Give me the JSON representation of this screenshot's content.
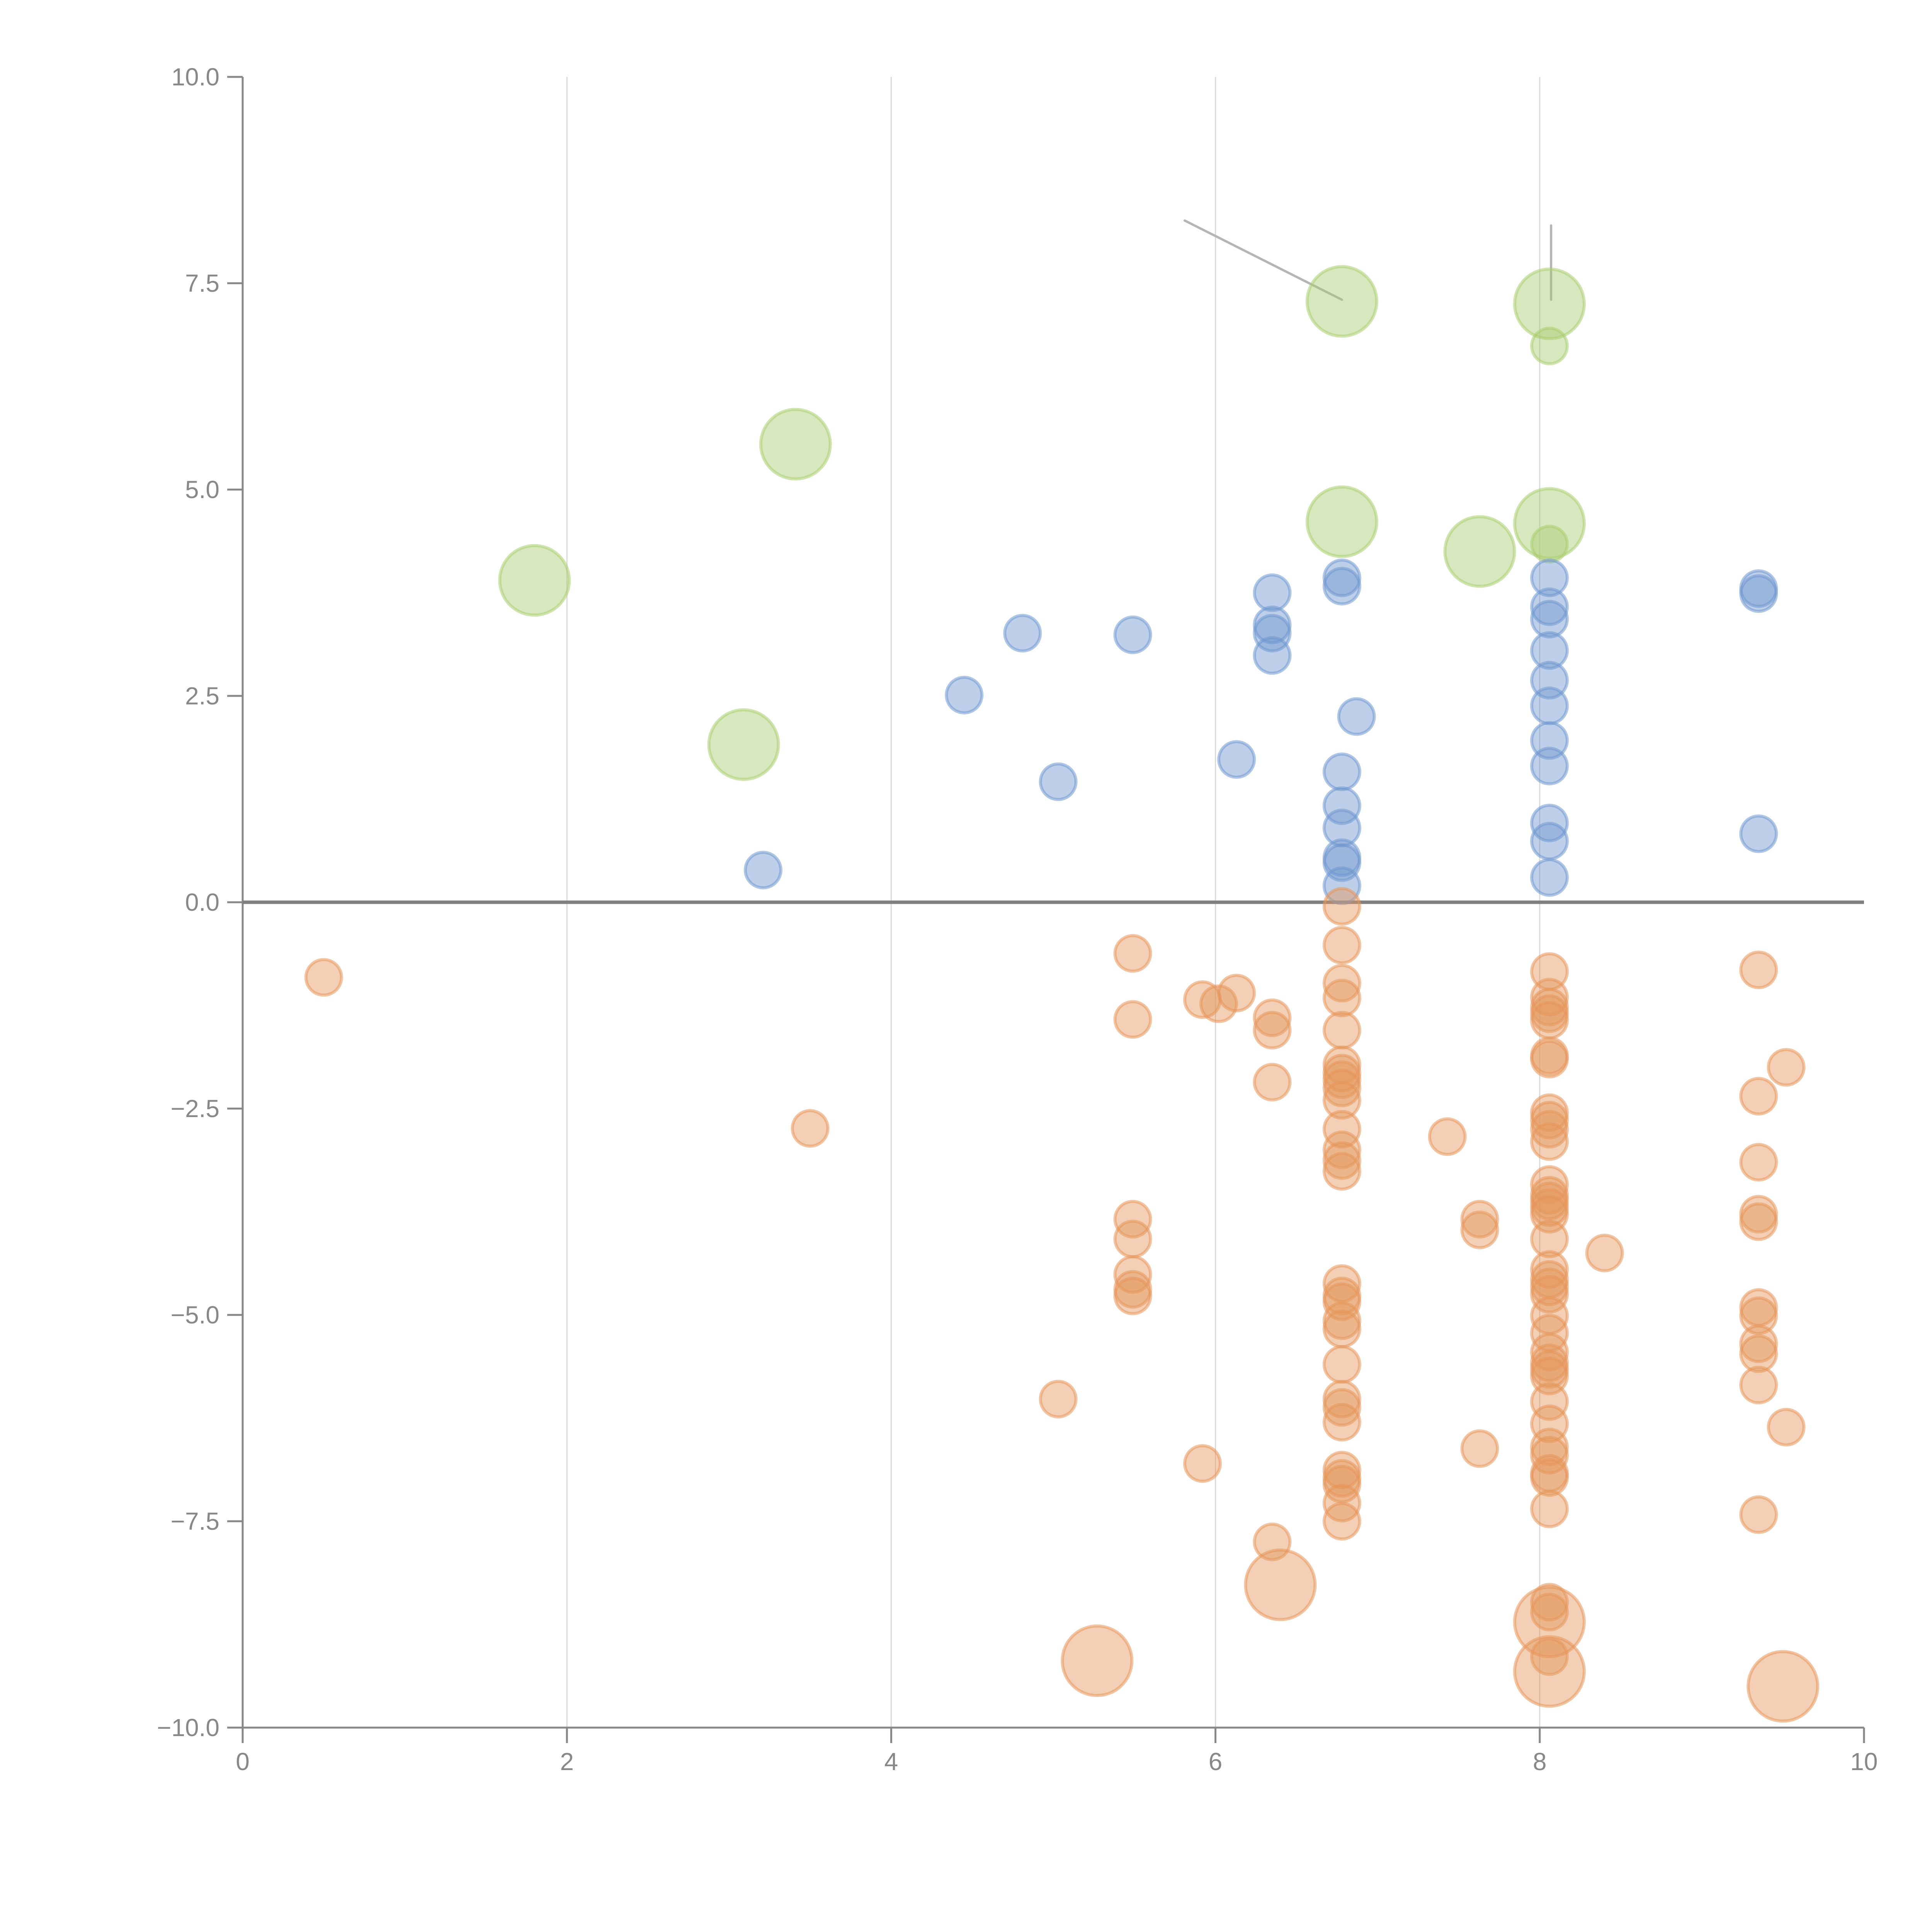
{
  "chart_data": {
    "type": "scatter",
    "title": "",
    "xlabel": "",
    "ylabel": "",
    "xlim": [
      0,
      10
    ],
    "ylim": [
      -10,
      10
    ],
    "grid": "vertical",
    "x_ticks": [
      "0",
      "2",
      "4",
      "6",
      "8",
      "10"
    ],
    "y_ticks": [
      "10.0",
      "7.5",
      "5.0",
      "2.5",
      "0.0",
      "−2.5",
      "−5.0",
      "−7.5",
      "−10.0"
    ],
    "legend": "none",
    "series": [
      {
        "name": "green",
        "color": "#a9cd6f",
        "points": [
          {
            "x": 1.8,
            "y": 3.9,
            "size": "large"
          },
          {
            "x": 3.41,
            "y": 5.55,
            "size": "large"
          },
          {
            "x": 3.09,
            "y": 1.91,
            "size": "large"
          },
          {
            "x": 6.78,
            "y": 7.28,
            "size": "large"
          },
          {
            "x": 8.06,
            "y": 7.25,
            "size": "large"
          },
          {
            "x": 6.78,
            "y": 4.61,
            "size": "large"
          },
          {
            "x": 7.63,
            "y": 4.25,
            "size": "large"
          },
          {
            "x": 8.06,
            "y": 4.59,
            "size": "large"
          },
          {
            "x": 8.06,
            "y": 6.74,
            "size": "small"
          },
          {
            "x": 8.06,
            "y": 4.34,
            "size": "small"
          }
        ]
      },
      {
        "name": "blue",
        "color": "#6f97cf",
        "points": [
          {
            "x": 3.21,
            "y": 0.39
          },
          {
            "x": 4.45,
            "y": 2.51
          },
          {
            "x": 4.81,
            "y": 3.26
          },
          {
            "x": 5.03,
            "y": 1.46
          },
          {
            "x": 5.49,
            "y": 3.24
          },
          {
            "x": 6.13,
            "y": 1.73
          },
          {
            "x": 6.35,
            "y": 3.75
          },
          {
            "x": 6.35,
            "y": 3.36
          },
          {
            "x": 6.35,
            "y": 3.26
          },
          {
            "x": 6.35,
            "y": 2.99
          },
          {
            "x": 6.78,
            "y": 3.93
          },
          {
            "x": 6.78,
            "y": 3.83
          },
          {
            "x": 6.87,
            "y": 2.25
          },
          {
            "x": 6.78,
            "y": 1.58
          },
          {
            "x": 6.78,
            "y": 1.17
          },
          {
            "x": 6.78,
            "y": 0.9
          },
          {
            "x": 6.78,
            "y": 0.54
          },
          {
            "x": 6.78,
            "y": 0.48
          },
          {
            "x": 6.78,
            "y": 0.2
          },
          {
            "x": 8.06,
            "y": 3.93
          },
          {
            "x": 8.06,
            "y": 3.58
          },
          {
            "x": 8.06,
            "y": 3.43
          },
          {
            "x": 8.06,
            "y": 3.05
          },
          {
            "x": 8.06,
            "y": 2.69
          },
          {
            "x": 8.06,
            "y": 2.38
          },
          {
            "x": 8.06,
            "y": 1.96
          },
          {
            "x": 8.06,
            "y": 1.65
          },
          {
            "x": 8.06,
            "y": 0.96
          },
          {
            "x": 8.06,
            "y": 0.74
          },
          {
            "x": 8.06,
            "y": 0.3
          },
          {
            "x": 9.35,
            "y": 3.8
          },
          {
            "x": 9.35,
            "y": 3.74
          },
          {
            "x": 9.35,
            "y": 0.83
          }
        ]
      },
      {
        "name": "orange",
        "color": "#e5965a",
        "points": [
          {
            "x": 0.5,
            "y": -0.91
          },
          {
            "x": 3.5,
            "y": -2.74
          },
          {
            "x": 5.03,
            "y": -6.02
          },
          {
            "x": 5.49,
            "y": -0.62
          },
          {
            "x": 5.49,
            "y": -1.42
          },
          {
            "x": 5.49,
            "y": -3.84
          },
          {
            "x": 5.49,
            "y": -4.08
          },
          {
            "x": 5.49,
            "y": -4.51
          },
          {
            "x": 5.49,
            "y": -4.69
          },
          {
            "x": 5.49,
            "y": -4.77
          },
          {
            "x": 5.92,
            "y": -1.18
          },
          {
            "x": 6.02,
            "y": -1.23
          },
          {
            "x": 6.13,
            "y": -1.1
          },
          {
            "x": 5.92,
            "y": -6.8
          },
          {
            "x": 6.35,
            "y": -1.4
          },
          {
            "x": 6.35,
            "y": -1.55
          },
          {
            "x": 6.35,
            "y": -2.18
          },
          {
            "x": 6.35,
            "y": -7.75
          },
          {
            "x": 6.78,
            "y": -0.05
          },
          {
            "x": 6.78,
            "y": -0.52
          },
          {
            "x": 6.78,
            "y": -0.98
          },
          {
            "x": 6.78,
            "y": -1.16
          },
          {
            "x": 6.78,
            "y": -1.55
          },
          {
            "x": 6.78,
            "y": -1.97
          },
          {
            "x": 6.78,
            "y": -2.07
          },
          {
            "x": 6.78,
            "y": -2.15
          },
          {
            "x": 6.78,
            "y": -2.25
          },
          {
            "x": 6.78,
            "y": -2.4
          },
          {
            "x": 6.78,
            "y": -2.75
          },
          {
            "x": 6.78,
            "y": -3.0
          },
          {
            "x": 6.78,
            "y": -3.13
          },
          {
            "x": 6.78,
            "y": -3.26
          },
          {
            "x": 6.78,
            "y": -4.62
          },
          {
            "x": 6.78,
            "y": -4.77
          },
          {
            "x": 6.78,
            "y": -4.84
          },
          {
            "x": 6.78,
            "y": -5.07
          },
          {
            "x": 6.78,
            "y": -5.17
          },
          {
            "x": 6.78,
            "y": -5.6
          },
          {
            "x": 6.78,
            "y": -6.02
          },
          {
            "x": 6.78,
            "y": -6.12
          },
          {
            "x": 6.78,
            "y": -6.3
          },
          {
            "x": 6.78,
            "y": -6.88
          },
          {
            "x": 6.78,
            "y": -6.98
          },
          {
            "x": 6.78,
            "y": -7.05
          },
          {
            "x": 6.78,
            "y": -7.28
          },
          {
            "x": 6.78,
            "y": -7.5
          },
          {
            "x": 7.43,
            "y": -2.84
          },
          {
            "x": 7.63,
            "y": -3.84
          },
          {
            "x": 7.63,
            "y": -3.97
          },
          {
            "x": 7.63,
            "y": -6.62
          },
          {
            "x": 8.4,
            "y": -4.25
          },
          {
            "x": 8.06,
            "y": -0.84
          },
          {
            "x": 8.06,
            "y": -1.15
          },
          {
            "x": 8.06,
            "y": -1.27
          },
          {
            "x": 8.06,
            "y": -1.35
          },
          {
            "x": 8.06,
            "y": -1.43
          },
          {
            "x": 8.06,
            "y": -1.86
          },
          {
            "x": 8.06,
            "y": -1.9
          },
          {
            "x": 8.06,
            "y": -2.55
          },
          {
            "x": 8.06,
            "y": -2.64
          },
          {
            "x": 8.06,
            "y": -2.75
          },
          {
            "x": 8.06,
            "y": -2.9
          },
          {
            "x": 8.06,
            "y": -3.42
          },
          {
            "x": 8.06,
            "y": -3.55
          },
          {
            "x": 8.06,
            "y": -3.62
          },
          {
            "x": 8.06,
            "y": -3.7
          },
          {
            "x": 8.06,
            "y": -3.78
          },
          {
            "x": 8.06,
            "y": -4.08
          },
          {
            "x": 8.06,
            "y": -4.45
          },
          {
            "x": 8.06,
            "y": -4.57
          },
          {
            "x": 8.06,
            "y": -4.66
          },
          {
            "x": 8.06,
            "y": -4.75
          },
          {
            "x": 8.06,
            "y": -5.01
          },
          {
            "x": 8.06,
            "y": -5.22
          },
          {
            "x": 8.06,
            "y": -5.45
          },
          {
            "x": 8.06,
            "y": -5.58
          },
          {
            "x": 8.06,
            "y": -5.66
          },
          {
            "x": 8.06,
            "y": -5.74
          },
          {
            "x": 8.06,
            "y": -6.05
          },
          {
            "x": 8.06,
            "y": -6.32
          },
          {
            "x": 8.06,
            "y": -6.6
          },
          {
            "x": 8.06,
            "y": -6.7
          },
          {
            "x": 8.06,
            "y": -6.92
          },
          {
            "x": 8.06,
            "y": -6.97
          },
          {
            "x": 8.06,
            "y": -7.35
          },
          {
            "x": 8.06,
            "y": -8.48
          },
          {
            "x": 8.06,
            "y": -8.6
          },
          {
            "x": 8.06,
            "y": -9.14
          },
          {
            "x": 9.35,
            "y": -0.82
          },
          {
            "x": 9.52,
            "y": -2.0
          },
          {
            "x": 9.35,
            "y": -2.35
          },
          {
            "x": 9.35,
            "y": -3.15
          },
          {
            "x": 9.35,
            "y": -3.78
          },
          {
            "x": 9.35,
            "y": -3.87
          },
          {
            "x": 9.35,
            "y": -4.91
          },
          {
            "x": 9.35,
            "y": -5.01
          },
          {
            "x": 9.35,
            "y": -5.35
          },
          {
            "x": 9.35,
            "y": -5.47
          },
          {
            "x": 9.35,
            "y": -5.85
          },
          {
            "x": 9.52,
            "y": -6.36
          },
          {
            "x": 9.35,
            "y": -7.42
          },
          {
            "x": 6.4,
            "y": -8.27,
            "size": "large"
          },
          {
            "x": 5.27,
            "y": -9.19,
            "size": "large"
          },
          {
            "x": 8.06,
            "y": -8.72,
            "size": "large"
          },
          {
            "x": 8.06,
            "y": -9.32,
            "size": "large"
          },
          {
            "x": 9.5,
            "y": -9.5,
            "size": "large"
          }
        ]
      }
    ],
    "annotations": [
      {
        "type": "leader-line",
        "from": {
          "x": 5.81,
          "y": 8.26
        },
        "to": {
          "x": 6.78,
          "y": 7.3
        }
      },
      {
        "type": "leader-line",
        "from": {
          "x": 8.07,
          "y": 8.2
        },
        "to": {
          "x": 8.07,
          "y": 7.3
        }
      }
    ]
  }
}
